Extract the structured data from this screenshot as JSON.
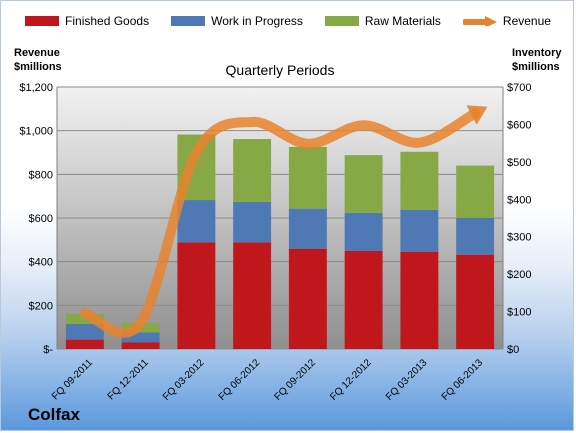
{
  "company": "Colfax",
  "chart_data": {
    "type": "bar",
    "title": "Quarterly Periods",
    "left_axis_label": "Revenue\n$millions",
    "right_axis_label": "Inventory\n$millions",
    "categories": [
      "FQ 09-2011",
      "FQ 12-2011",
      "FQ 03-2012",
      "FQ 06-2012",
      "FQ 09-2012",
      "FQ 12-2012",
      "FQ 03-2013",
      "FQ 06-2013"
    ],
    "left_ticks": [
      "$-",
      "$200",
      "$400",
      "$600",
      "$800",
      "$1,000",
      "$1,200"
    ],
    "right_ticks": [
      "$0",
      "$100",
      "$200",
      "$300",
      "$400",
      "$500",
      "$600",
      "$700"
    ],
    "left_ylim": [
      0,
      1200
    ],
    "right_ylim": [
      0,
      700
    ],
    "stacked": true,
    "series": [
      {
        "name": "Finished Goods",
        "axis": "right",
        "kind": "bar",
        "color": "#c0171c",
        "values": [
          25,
          18,
          285,
          285,
          268,
          262,
          260,
          252
        ]
      },
      {
        "name": "Work in Progress",
        "axis": "right",
        "kind": "bar",
        "color": "#4f79b4",
        "values": [
          42,
          26,
          113,
          108,
          107,
          102,
          112,
          98
        ]
      },
      {
        "name": "Raw Materials",
        "axis": "right",
        "kind": "bar",
        "color": "#86a845",
        "values": [
          27,
          25,
          175,
          168,
          165,
          154,
          155,
          140
        ]
      },
      {
        "name": "Revenue",
        "axis": "left",
        "kind": "line",
        "color": "#e7832e",
        "values": [
          165,
          120,
          900,
          1040,
          940,
          1025,
          945,
          1080
        ]
      }
    ],
    "grid": true,
    "legend_position": "top"
  }
}
